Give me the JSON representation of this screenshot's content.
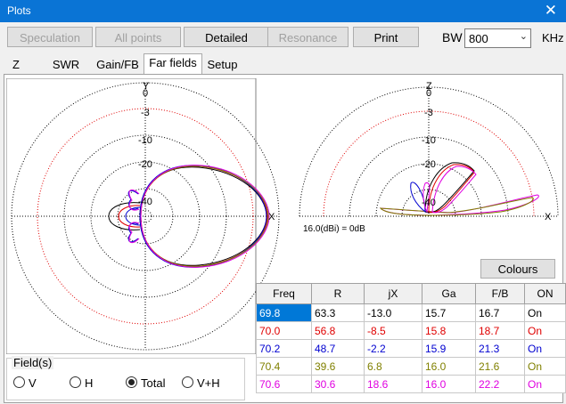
{
  "window": {
    "title": "Plots",
    "close": "✕"
  },
  "toolbar": {
    "buttons": [
      {
        "label": "Speculation",
        "enabled": false
      },
      {
        "label": "All points",
        "enabled": false
      },
      {
        "label": "Detailed",
        "enabled": true
      },
      {
        "label": "Resonance",
        "enabled": false
      },
      {
        "label": "Print",
        "enabled": true
      }
    ],
    "bw_label": "BW",
    "bw_value": "800",
    "bw_unit": "KHz"
  },
  "tabs": [
    {
      "label": "Z",
      "active": false
    },
    {
      "label": "SWR",
      "active": false
    },
    {
      "label": "Gain/FB",
      "active": false
    },
    {
      "label": "Far fields",
      "active": true
    },
    {
      "label": "Setup",
      "active": false
    }
  ],
  "plots": {
    "azimuth_labels": {
      "top": "Y",
      "right": "X",
      "rings": [
        "0",
        "-3",
        "-10",
        "-20",
        "-40"
      ]
    },
    "elevation_labels": {
      "top": "Z",
      "right": "X",
      "rings": [
        "0",
        "-3",
        "-10",
        "-20",
        "-40"
      ]
    },
    "gain_reference": "16.0(dBi) = 0dB"
  },
  "colours_button": "Colours",
  "results": {
    "columns": [
      "Freq",
      "R",
      "jX",
      "Ga",
      "F/B",
      "ON"
    ],
    "rows": [
      {
        "cells": [
          "69.8",
          "63.3",
          "-13.0",
          "15.7",
          "16.7",
          "On"
        ],
        "color": "#000000"
      },
      {
        "cells": [
          "70.0",
          "56.8",
          "-8.5",
          "15.8",
          "18.7",
          "On"
        ],
        "color": "#e00000"
      },
      {
        "cells": [
          "70.2",
          "48.7",
          "-2.2",
          "15.9",
          "21.3",
          "On"
        ],
        "color": "#0000d0"
      },
      {
        "cells": [
          "70.4",
          "39.6",
          "6.8",
          "16.0",
          "21.6",
          "On"
        ],
        "color": "#808000"
      },
      {
        "cells": [
          "70.6",
          "30.6",
          "18.6",
          "16.0",
          "22.2",
          "On"
        ],
        "color": "#e000e0"
      }
    ]
  },
  "field": {
    "title": "Field(s)",
    "options": [
      {
        "label": "V",
        "checked": false
      },
      {
        "label": "H",
        "checked": false
      },
      {
        "label": "Total",
        "checked": true
      },
      {
        "label": "V+H",
        "checked": false
      }
    ]
  }
}
